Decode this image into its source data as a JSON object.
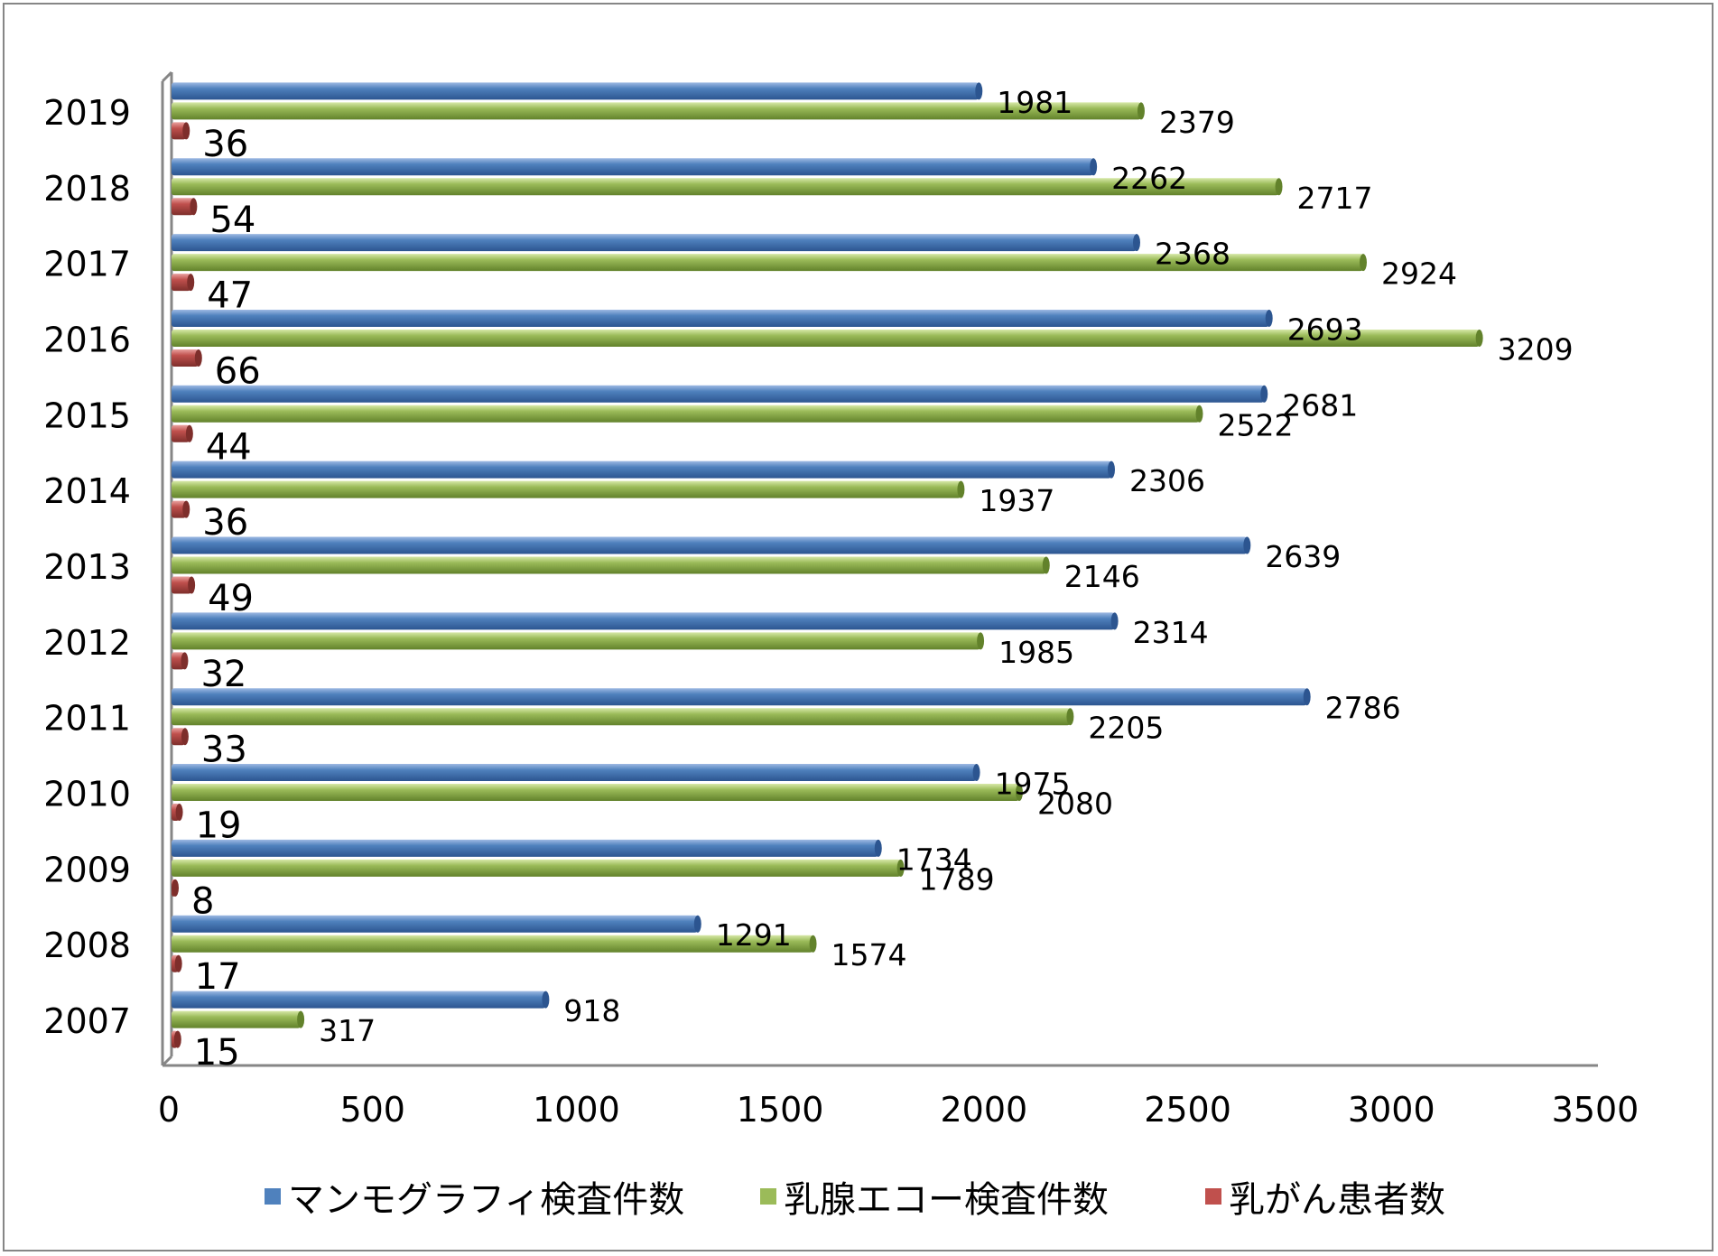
{
  "chart_data": {
    "type": "bar",
    "orientation": "horizontal",
    "categories": [
      "2007",
      "2008",
      "2009",
      "2010",
      "2011",
      "2012",
      "2013",
      "2014",
      "2015",
      "2016",
      "2017",
      "2018",
      "2019"
    ],
    "series": [
      {
        "name": "マンモグラフィ検査件数",
        "color": "#4F81BD",
        "values": [
          918,
          1291,
          1734,
          1975,
          2786,
          2314,
          2639,
          2306,
          2681,
          2693,
          2368,
          2262,
          1981
        ]
      },
      {
        "name": "乳腺エコー検査件数",
        "color": "#9BBB59",
        "values": [
          317,
          1574,
          1789,
          2080,
          2205,
          1985,
          2146,
          1937,
          2522,
          3209,
          2924,
          2717,
          2379
        ]
      },
      {
        "name": "乳がん患者数",
        "color": "#C0504D",
        "values": [
          15,
          17,
          8,
          19,
          33,
          32,
          49,
          36,
          44,
          66,
          47,
          54,
          36
        ]
      }
    ],
    "xlim": [
      0,
      3500
    ],
    "xticks": [
      0,
      500,
      1000,
      1500,
      2000,
      2500,
      3000,
      3500
    ],
    "legend_position": "bottom",
    "grid": false
  }
}
